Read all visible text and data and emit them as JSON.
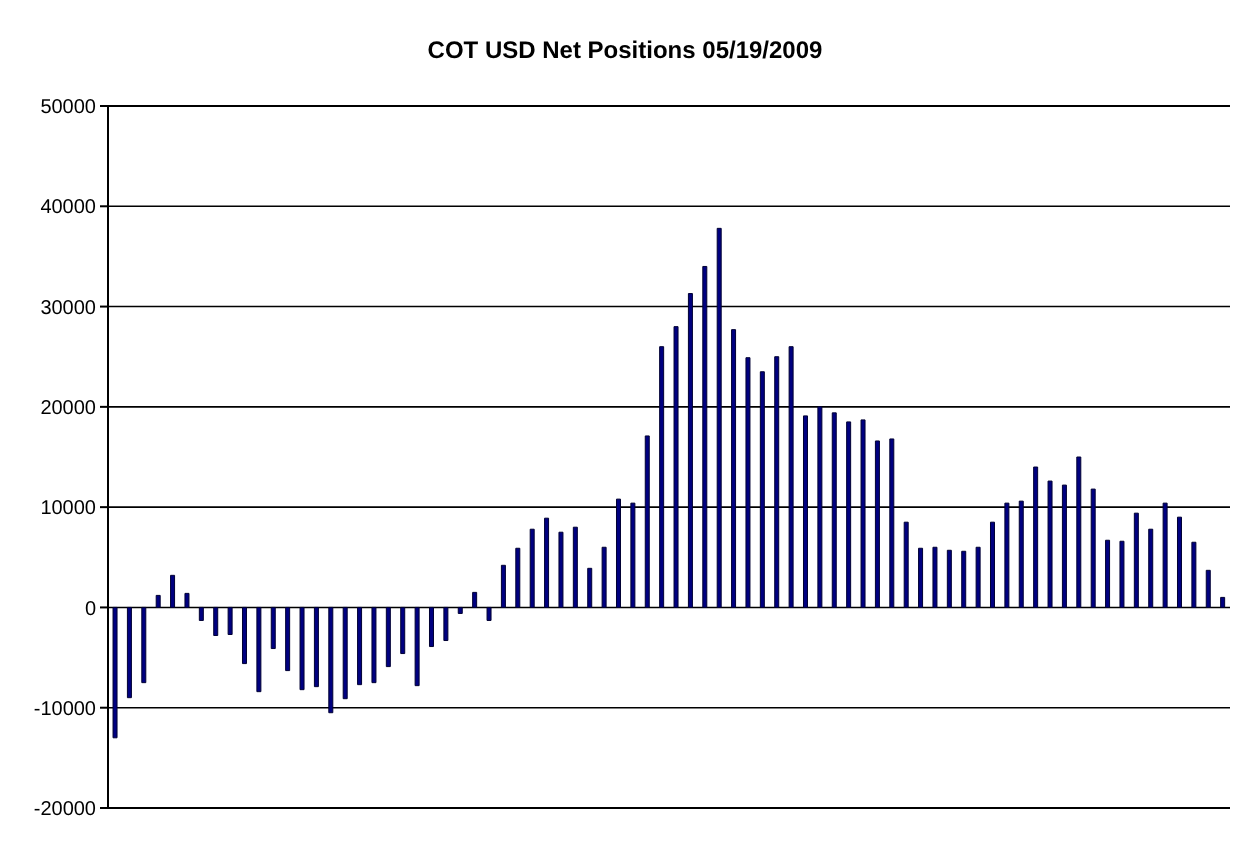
{
  "chart_data": {
    "type": "bar",
    "title": "COT USD  Net Positions 05/19/2009",
    "categories": [
      null,
      null,
      null,
      null,
      null,
      null,
      null,
      null,
      null,
      null,
      null,
      null,
      null,
      null,
      null,
      null,
      null,
      null,
      null,
      null,
      null,
      null,
      null,
      null,
      null,
      null,
      null,
      null,
      null,
      null,
      null,
      null,
      null,
      null,
      null,
      null,
      null,
      null,
      null,
      null,
      null,
      null,
      null,
      null,
      null,
      null,
      null,
      null,
      null,
      null,
      null,
      null,
      null,
      null,
      null,
      null,
      null,
      null,
      null,
      null,
      null,
      null,
      null,
      null,
      null,
      null,
      null,
      null,
      null,
      null,
      null,
      null,
      null,
      null,
      null,
      null,
      null,
      null
    ],
    "values": [
      -13000,
      -9000,
      -7500,
      1200,
      3200,
      1400,
      -1300,
      -2800,
      -2700,
      -5600,
      -8400,
      -4100,
      -6300,
      -8200,
      -7900,
      -10500,
      -9100,
      -7700,
      -7500,
      -5900,
      -4600,
      -7800,
      -3900,
      -3300,
      -600,
      1500,
      -1300,
      4200,
      5900,
      7800,
      8900,
      7500,
      8000,
      3900,
      6000,
      10800,
      10400,
      17100,
      26000,
      28000,
      31300,
      34000,
      37800,
      27700,
      24900,
      23500,
      25000,
      26000,
      19100,
      20000,
      19400,
      18500,
      18700,
      16600,
      16800,
      8500,
      5900,
      6000,
      5700,
      5600,
      6000,
      8500,
      10400,
      10600,
      14000,
      12600,
      12200,
      15000,
      11800,
      6700,
      6600,
      9400,
      7800,
      10400,
      9000,
      6500,
      3700,
      1000
    ],
    "color": "#000080",
    "ylim": [
      -20000,
      50000
    ],
    "yticks": [
      -20000,
      -10000,
      0,
      10000,
      20000,
      30000,
      40000,
      50000
    ],
    "grid": "y"
  }
}
